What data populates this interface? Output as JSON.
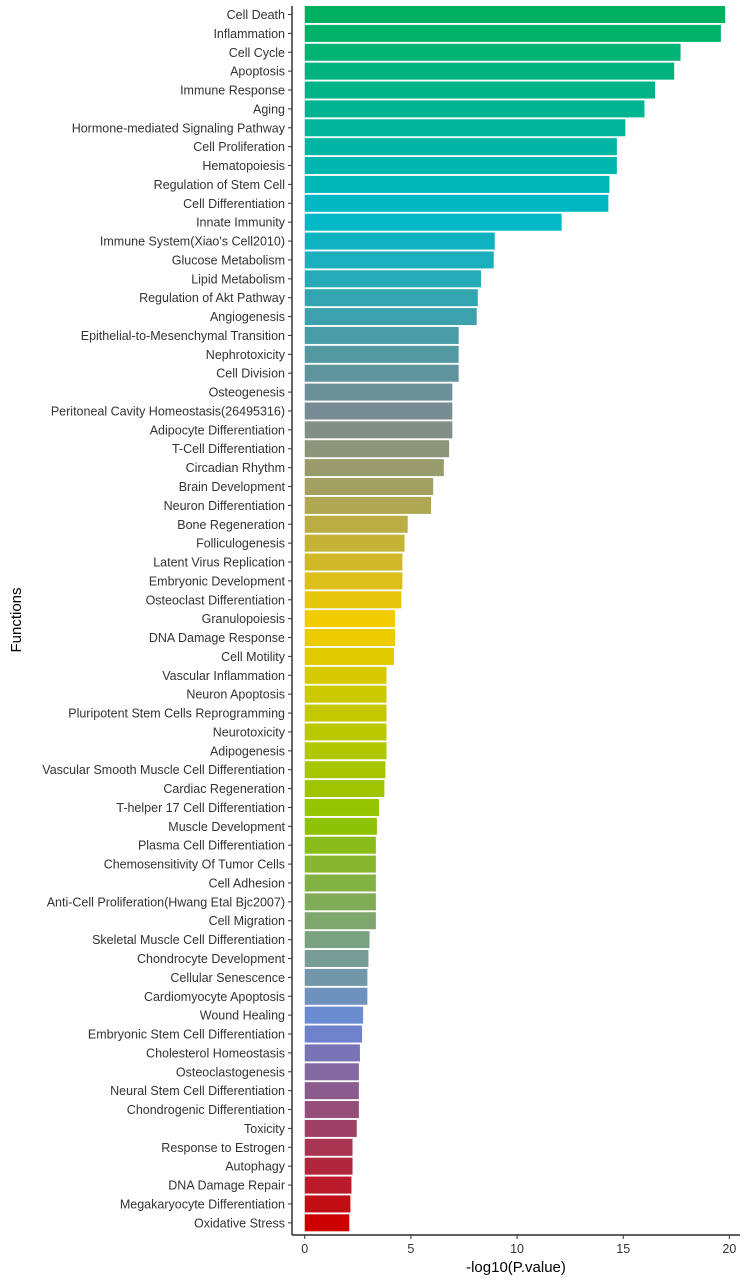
{
  "chart_data": {
    "type": "bar",
    "orientation": "horizontal",
    "xlabel": "-log10(P.value)",
    "ylabel": "Functions",
    "xlim": [
      -0.6,
      20.5
    ],
    "xticks": [
      0,
      5,
      10,
      15,
      20
    ],
    "grid": false,
    "legend": "none",
    "color_gradient": [
      "#00b060",
      "#00b8c8",
      "#7a8a90",
      "#f2cc00",
      "#8fc400",
      "#6a8ad8",
      "#cc0000"
    ],
    "categories": [
      "Cell Death",
      "Inflammation",
      "Cell Cycle",
      "Apoptosis",
      "Immune Response",
      "Aging",
      "Hormone-mediated Signaling Pathway",
      "Cell Proliferation",
      "Hematopoiesis",
      "Regulation of Stem Cell",
      "Cell Differentiation",
      "Innate Immunity",
      "Immune System(Xiao's Cell2010)",
      "Glucose Metabolism",
      "Lipid Metabolism",
      "Regulation of Akt Pathway",
      "Angiogenesis",
      "Epithelial-to-Mesenchymal Transition",
      "Nephrotoxicity",
      "Cell Division",
      "Osteogenesis",
      "Peritoneal Cavity Homeostasis(26495316)",
      "Adipocyte Differentiation",
      "T-Cell Differentiation",
      "Circadian Rhythm",
      "Brain Development",
      "Neuron Differentiation",
      "Bone Regeneration",
      "Folliculogenesis",
      "Latent Virus Replication",
      "Embryonic Development",
      "Osteoclast Differentiation",
      "Granulopoiesis",
      "DNA Damage Response",
      "Cell Motility",
      "Vascular Inflammation",
      "Neuron Apoptosis",
      "Pluripotent Stem Cells Reprogramming",
      "Neurotoxicity",
      "Adipogenesis",
      "Vascular Smooth Muscle Cell Differentiation",
      "Cardiac Regeneration",
      "T-helper 17 Cell Differentiation",
      "Muscle Development",
      "Plasma Cell Differentiation",
      "Chemosensitivity Of Tumor Cells",
      "Cell Adhesion",
      "Anti-Cell Proliferation(Hwang Etal Bjc2007)",
      "Cell Migration",
      "Skeletal Muscle Cell Differentiation",
      "Chondrocyte Development",
      "Cellular Senescence",
      "Cardiomyocyte Apoptosis",
      "Wound Healing",
      "Embryonic Stem Cell Differentiation",
      "Cholesterol Homeostasis",
      "Osteoclastogenesis",
      "Neural Stem Cell Differentiation",
      "Chondrogenic Differentiation",
      "Toxicity",
      "Response to Estrogen",
      "Autophagy",
      "DNA Damage Repair",
      "Megakaryocyte Differentiation",
      "Oxidative Stress"
    ],
    "values": [
      19.8,
      19.6,
      17.7,
      17.4,
      16.5,
      16.0,
      15.1,
      14.7,
      14.7,
      14.35,
      14.3,
      12.1,
      8.95,
      8.9,
      8.3,
      8.15,
      8.1,
      7.25,
      7.25,
      7.25,
      6.95,
      6.95,
      6.95,
      6.8,
      6.55,
      6.05,
      5.95,
      4.85,
      4.7,
      4.6,
      4.6,
      4.55,
      4.25,
      4.25,
      4.2,
      3.85,
      3.85,
      3.85,
      3.85,
      3.85,
      3.8,
      3.75,
      3.5,
      3.4,
      3.35,
      3.35,
      3.35,
      3.35,
      3.35,
      3.05,
      3.0,
      2.95,
      2.95,
      2.75,
      2.7,
      2.6,
      2.55,
      2.55,
      2.55,
      2.45,
      2.25,
      2.25,
      2.2,
      2.15,
      2.1
    ]
  }
}
